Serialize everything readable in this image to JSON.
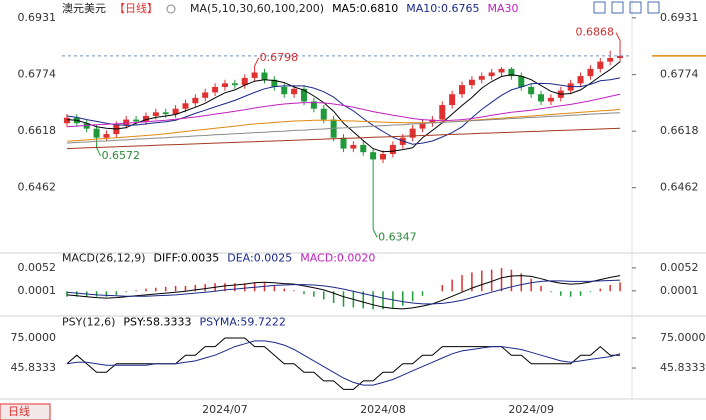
{
  "header": {
    "symbol": "澳元美元",
    "period": "【日线】",
    "ma_title": "MA(5,10,30,60,100,200)",
    "ma_legend": [
      {
        "text": "MA5:0.6810",
        "color": "#000000"
      },
      {
        "text": "MA10:0.6765",
        "color": "#1a2a8a"
      },
      {
        "text": "MA30",
        "color": "#c020c0"
      }
    ]
  },
  "footer_button": "日线",
  "chart_data": [
    {
      "type": "candlestick",
      "up_color": "#e03030",
      "down_color": "#1f9a3a",
      "ylim": [
        0.629,
        0.6958
      ],
      "yticks": [
        0.6931,
        0.6774,
        0.6618,
        0.6462
      ],
      "categories": [
        null,
        null,
        null,
        null,
        null,
        null,
        null,
        null,
        null,
        null,
        null,
        null,
        null,
        null,
        null,
        null,
        "2024/07",
        null,
        null,
        null,
        null,
        null,
        null,
        null,
        null,
        null,
        null,
        null,
        null,
        null,
        null,
        null,
        "2024/08",
        null,
        null,
        null,
        null,
        null,
        null,
        null,
        null,
        null,
        null,
        null,
        null,
        null,
        null,
        "2024/09",
        null,
        null,
        null,
        null,
        null,
        null,
        null,
        null,
        null
      ],
      "open": [
        0.664,
        0.6655,
        0.664,
        0.6625,
        0.66,
        0.661,
        0.6635,
        0.665,
        0.6645,
        0.666,
        0.667,
        0.6665,
        0.668,
        0.6695,
        0.671,
        0.6725,
        0.674,
        0.675,
        0.6745,
        0.6765,
        0.678,
        0.676,
        0.674,
        0.672,
        0.6735,
        0.67,
        0.668,
        0.665,
        0.66,
        0.657,
        0.658,
        0.656,
        0.654,
        0.6555,
        0.658,
        0.66,
        0.6625,
        0.664,
        0.665,
        0.669,
        0.672,
        0.6745,
        0.676,
        0.677,
        0.678,
        0.679,
        0.677,
        0.674,
        0.672,
        0.67,
        0.671,
        0.673,
        0.675,
        0.677,
        0.679,
        0.681,
        0.682
      ],
      "high": [
        0.6665,
        0.6665,
        0.665,
        0.6635,
        0.662,
        0.6645,
        0.666,
        0.666,
        0.667,
        0.668,
        0.668,
        0.669,
        0.6705,
        0.672,
        0.6735,
        0.675,
        0.676,
        0.676,
        0.6775,
        0.6798,
        0.679,
        0.677,
        0.675,
        0.6745,
        0.6745,
        0.671,
        0.669,
        0.666,
        0.661,
        0.659,
        0.659,
        0.657,
        0.6565,
        0.659,
        0.661,
        0.6635,
        0.665,
        0.666,
        0.67,
        0.673,
        0.6755,
        0.677,
        0.678,
        0.679,
        0.6795,
        0.6795,
        0.678,
        0.675,
        0.673,
        0.672,
        0.674,
        0.676,
        0.678,
        0.68,
        0.682,
        0.684,
        0.6868
      ],
      "low": [
        0.663,
        0.663,
        0.6615,
        0.6572,
        0.659,
        0.66,
        0.6625,
        0.6635,
        0.6635,
        0.665,
        0.6655,
        0.6655,
        0.667,
        0.6685,
        0.67,
        0.6715,
        0.673,
        0.6735,
        0.6735,
        0.6755,
        0.675,
        0.673,
        0.671,
        0.671,
        0.669,
        0.667,
        0.664,
        0.659,
        0.656,
        0.656,
        0.655,
        0.6347,
        0.653,
        0.6545,
        0.657,
        0.659,
        0.6615,
        0.663,
        0.664,
        0.668,
        0.671,
        0.6735,
        0.675,
        0.676,
        0.677,
        0.676,
        0.673,
        0.671,
        0.669,
        0.669,
        0.67,
        0.672,
        0.674,
        0.676,
        0.678,
        0.68,
        0.681
      ],
      "close": [
        0.6655,
        0.664,
        0.6625,
        0.66,
        0.661,
        0.6635,
        0.665,
        0.6645,
        0.666,
        0.667,
        0.6665,
        0.668,
        0.6695,
        0.671,
        0.6725,
        0.674,
        0.675,
        0.6745,
        0.6765,
        0.678,
        0.676,
        0.674,
        0.672,
        0.6735,
        0.67,
        0.668,
        0.665,
        0.66,
        0.657,
        0.658,
        0.656,
        0.654,
        0.6555,
        0.658,
        0.66,
        0.6625,
        0.664,
        0.665,
        0.669,
        0.672,
        0.6745,
        0.676,
        0.677,
        0.678,
        0.679,
        0.677,
        0.674,
        0.672,
        0.67,
        0.671,
        0.673,
        0.675,
        0.677,
        0.679,
        0.681,
        0.682,
        0.6826
      ],
      "series": [
        {
          "color": "#000000",
          "values": [
            0.665,
            0.6648,
            0.664,
            0.663,
            0.6626,
            0.6624,
            0.6628,
            0.664,
            0.665,
            0.6656,
            0.666,
            0.6664,
            0.6674,
            0.6684,
            0.6695,
            0.671,
            0.6724,
            0.6732,
            0.6745,
            0.6756,
            0.676,
            0.6758,
            0.6752,
            0.674,
            0.6731,
            0.6715,
            0.6697,
            0.6673,
            0.664,
            0.6616,
            0.6592,
            0.657,
            0.6561,
            0.6563,
            0.6567,
            0.6572,
            0.66,
            0.662,
            0.6641,
            0.6665,
            0.6689,
            0.6711,
            0.6737,
            0.6755,
            0.6769,
            0.6774,
            0.677,
            0.676,
            0.6744,
            0.6728,
            0.672,
            0.6722,
            0.6732,
            0.675,
            0.677,
            0.6788,
            0.681
          ]
        },
        {
          "color": "#1a2a8a",
          "values": [
            0.666,
            0.6656,
            0.665,
            0.6645,
            0.664,
            0.6636,
            0.6634,
            0.6635,
            0.6638,
            0.6641,
            0.6644,
            0.6648,
            0.6657,
            0.6667,
            0.6676,
            0.6685,
            0.6694,
            0.6703,
            0.6714,
            0.6725,
            0.6735,
            0.6741,
            0.6743,
            0.6743,
            0.6743,
            0.6737,
            0.6727,
            0.6712,
            0.669,
            0.6674,
            0.6653,
            0.6634,
            0.6617,
            0.6601,
            0.6591,
            0.6582,
            0.6585,
            0.6591,
            0.6602,
            0.6614,
            0.663,
            0.6655,
            0.6678,
            0.6698,
            0.6717,
            0.6732,
            0.674,
            0.6749,
            0.675,
            0.6749,
            0.6745,
            0.6741,
            0.6741,
            0.6747,
            0.6757,
            0.676,
            0.6765
          ]
        },
        {
          "color": "#c020c0",
          "values": [
            0.663,
            0.6632,
            0.6634,
            0.6636,
            0.6637,
            0.6638,
            0.664,
            0.6642,
            0.6644,
            0.6646,
            0.6648,
            0.6651,
            0.6654,
            0.6657,
            0.6661,
            0.6665,
            0.6669,
            0.6673,
            0.6677,
            0.6682,
            0.6686,
            0.669,
            0.6693,
            0.6695,
            0.6697,
            0.6697,
            0.6696,
            0.6693,
            0.6689,
            0.6684,
            0.6678,
            0.6672,
            0.6667,
            0.6662,
            0.6658,
            0.6653,
            0.665,
            0.6648,
            0.6647,
            0.6648,
            0.665,
            0.6653,
            0.6657,
            0.6662,
            0.6666,
            0.667,
            0.6673,
            0.6676,
            0.668,
            0.6684,
            0.6688,
            0.6692,
            0.6697,
            0.6702,
            0.6708,
            0.6714,
            0.672
          ]
        },
        {
          "color": "#e08a10",
          "values": [
            0.659,
            0.6592,
            0.6594,
            0.6596,
            0.6598,
            0.66,
            0.6602,
            0.6604,
            0.6606,
            0.6608,
            0.6611,
            0.6614,
            0.6617,
            0.662,
            0.6623,
            0.6626,
            0.6629,
            0.6632,
            0.6635,
            0.6638,
            0.664,
            0.6642,
            0.6644,
            0.6646,
            0.6647,
            0.6648,
            0.6648,
            0.6648,
            0.6647,
            0.6646,
            0.6645,
            0.6644,
            0.6643,
            0.6642,
            0.6641,
            0.6641,
            0.6641,
            0.6642,
            0.6643,
            0.6644,
            0.6646,
            0.6648,
            0.665,
            0.6652,
            0.6654,
            0.6656,
            0.6658,
            0.666,
            0.6662,
            0.6664,
            0.6666,
            0.6668,
            0.667,
            0.6672,
            0.6674,
            0.6676,
            0.6678
          ]
        },
        {
          "color": "#8a8a8a",
          "values": [
            0.6585,
            0.6587,
            0.6588,
            0.659,
            0.6591,
            0.6593,
            0.6594,
            0.6596,
            0.6597,
            0.6599,
            0.66,
            0.6602,
            0.6603,
            0.6605,
            0.6606,
            0.6608,
            0.6609,
            0.6611,
            0.6612,
            0.6614,
            0.6615,
            0.6617,
            0.6618,
            0.662,
            0.6621,
            0.6623,
            0.6624,
            0.6626,
            0.6627,
            0.6629,
            0.663,
            0.6632,
            0.6633,
            0.6635,
            0.6636,
            0.6638,
            0.6639,
            0.6641,
            0.6642,
            0.6644,
            0.6645,
            0.6647,
            0.6648,
            0.665,
            0.6651,
            0.6653,
            0.6654,
            0.6656,
            0.6657,
            0.6659,
            0.666,
            0.6662,
            0.6663,
            0.6665,
            0.6666,
            0.6668,
            0.6669
          ]
        },
        {
          "color": "#a33a20",
          "values": [
            0.657,
            0.6571,
            0.6572,
            0.6573,
            0.6574,
            0.6575,
            0.6576,
            0.6577,
            0.6578,
            0.6579,
            0.658,
            0.6581,
            0.6582,
            0.6583,
            0.6584,
            0.6585,
            0.6586,
            0.6587,
            0.6588,
            0.6589,
            0.659,
            0.6591,
            0.6592,
            0.6593,
            0.6594,
            0.6595,
            0.6596,
            0.6597,
            0.6598,
            0.6599,
            0.66,
            0.6601,
            0.6602,
            0.6603,
            0.6604,
            0.6605,
            0.6606,
            0.6607,
            0.6608,
            0.6609,
            0.661,
            0.6611,
            0.6612,
            0.6613,
            0.6614,
            0.6615,
            0.6616,
            0.6617,
            0.6618,
            0.6619,
            0.662,
            0.6621,
            0.6622,
            0.6623,
            0.6624,
            0.6625,
            0.6626
          ]
        }
      ]
    },
    {
      "type": "macd",
      "title": "MACD(26,12,9)",
      "legend": [
        {
          "text": "DIFF:0.0035",
          "color": "#000000"
        },
        {
          "text": "DEA:0.0025",
          "color": "#1a2a8a"
        },
        {
          "text": "MACD:0.0020",
          "color": "#c020c0"
        }
      ],
      "ylim": [
        -0.0046,
        0.0074
      ],
      "yticks": [
        0.0052,
        0.0001
      ],
      "up_color": "#e03030",
      "down_color": "#1f9a3a",
      "bars": [
        -0.0012,
        -0.0012,
        -0.0012,
        -0.0012,
        -0.0012,
        -0.0008,
        -0.0002,
        0.0002,
        0.0006,
        0.0008,
        0.001,
        0.0012,
        0.0012,
        0.0014,
        0.0016,
        0.0018,
        0.0018,
        0.0018,
        0.0018,
        0.002,
        0.0018,
        0.0012,
        0.0006,
        0.0002,
        -0.0006,
        -0.0012,
        -0.0018,
        -0.0026,
        -0.0034,
        -0.0036,
        -0.0038,
        -0.004,
        -0.004,
        -0.0038,
        -0.0032,
        -0.0022,
        -0.001,
        0.0,
        0.0014,
        0.0026,
        0.0036,
        0.0042,
        0.0046,
        0.0048,
        0.0052,
        0.0048,
        0.004,
        0.0028,
        0.0012,
        -0.0002,
        -0.001,
        -0.0012,
        -0.001,
        -0.0002,
        0.0006,
        0.0014,
        0.002
      ],
      "series": [
        {
          "color": "#000000",
          "values": [
            -0.0008,
            -0.001,
            -0.0012,
            -0.0014,
            -0.0015,
            -0.0014,
            -0.0012,
            -0.001,
            -0.0008,
            -0.0006,
            -0.0004,
            -0.0002,
            0.0,
            0.0003,
            0.0006,
            0.0009,
            0.0012,
            0.0014,
            0.0016,
            0.0019,
            0.002,
            0.0019,
            0.0017,
            0.0016,
            0.0012,
            0.0008,
            0.0003,
            -0.0004,
            -0.0012,
            -0.0018,
            -0.0024,
            -0.003,
            -0.0035,
            -0.0038,
            -0.0039,
            -0.0037,
            -0.0033,
            -0.0028,
            -0.002,
            -0.0011,
            -0.0002,
            0.0007,
            0.0015,
            0.0022,
            0.003,
            0.0034,
            0.0035,
            0.0033,
            0.0028,
            0.0022,
            0.0018,
            0.0016,
            0.0017,
            0.0021,
            0.0026,
            0.0031,
            0.0035
          ]
        },
        {
          "color": "#1a2a8a",
          "values": [
            -0.0002,
            -0.0004,
            -0.0006,
            -0.0008,
            -0.0009,
            -0.001,
            -0.0011,
            -0.0011,
            -0.0011,
            -0.001,
            -0.0009,
            -0.0008,
            -0.0006,
            -0.0004,
            -0.0002,
            0.0,
            0.0003,
            0.0005,
            0.0007,
            0.0009,
            0.0011,
            0.0013,
            0.0014,
            0.0015,
            0.0015,
            0.0014,
            0.0012,
            0.0009,
            0.0005,
            0.0,
            -0.0005,
            -0.001,
            -0.0015,
            -0.0019,
            -0.0023,
            -0.0026,
            -0.0028,
            -0.0028,
            -0.0027,
            -0.0024,
            -0.002,
            -0.0014,
            -0.0008,
            -0.0002,
            0.0004,
            0.001,
            0.0015,
            0.0019,
            0.0022,
            0.0023,
            0.0023,
            0.0022,
            0.0022,
            0.0022,
            0.0023,
            0.0024,
            0.0025
          ]
        }
      ]
    },
    {
      "type": "line",
      "title": "PSY(12,6)",
      "legend": [
        {
          "text": "PSY:58.3333",
          "color": "#000000"
        },
        {
          "text": "PSYMA:59.7222",
          "color": "#1a2a8a"
        }
      ],
      "ylim": [
        19.6,
        90.6
      ],
      "yticks": [
        {
          "value": 75,
          "label": "75.0000"
        },
        45.8333
      ],
      "series": [
        {
          "color": "#000000",
          "values": [
            50,
            58.3333,
            50,
            41.6667,
            41.6667,
            50,
            50,
            50,
            50,
            50,
            50,
            50,
            58.3333,
            58.3333,
            66.6667,
            66.6667,
            75,
            75,
            75,
            66.6667,
            66.6667,
            58.3333,
            50,
            50,
            41.6667,
            41.6667,
            33.3333,
            33.3333,
            25,
            25,
            33.3333,
            33.3333,
            41.6667,
            41.6667,
            50,
            50,
            58.3333,
            58.3333,
            66.6667,
            66.6667,
            66.6667,
            66.6667,
            66.6667,
            66.6667,
            66.6667,
            58.3333,
            58.3333,
            50,
            50,
            50,
            50,
            50,
            58.3333,
            58.3333,
            66.6667,
            58.3333,
            58.3333
          ]
        },
        {
          "color": "#1a2a8a",
          "values": [
            50,
            51.4,
            51.4,
            50,
            48.6,
            48.6,
            48.6,
            48.6,
            48.6,
            50,
            50,
            50,
            51.4,
            52.8,
            55.6,
            58.3,
            62.5,
            66.7,
            69.4,
            72.2,
            72.2,
            70.8,
            68.1,
            63.9,
            58.3,
            52.8,
            47.2,
            41.7,
            36.1,
            31.9,
            29.2,
            29.2,
            31.9,
            34.7,
            38.9,
            43.1,
            47.2,
            51.4,
            55.6,
            59.7,
            62.5,
            63.9,
            65.3,
            66.7,
            66.7,
            65.3,
            63.9,
            61.1,
            58.3,
            55.6,
            52.8,
            51.4,
            52.8,
            54.2,
            55.6,
            56.9,
            59.7222
          ]
        }
      ]
    }
  ]
}
